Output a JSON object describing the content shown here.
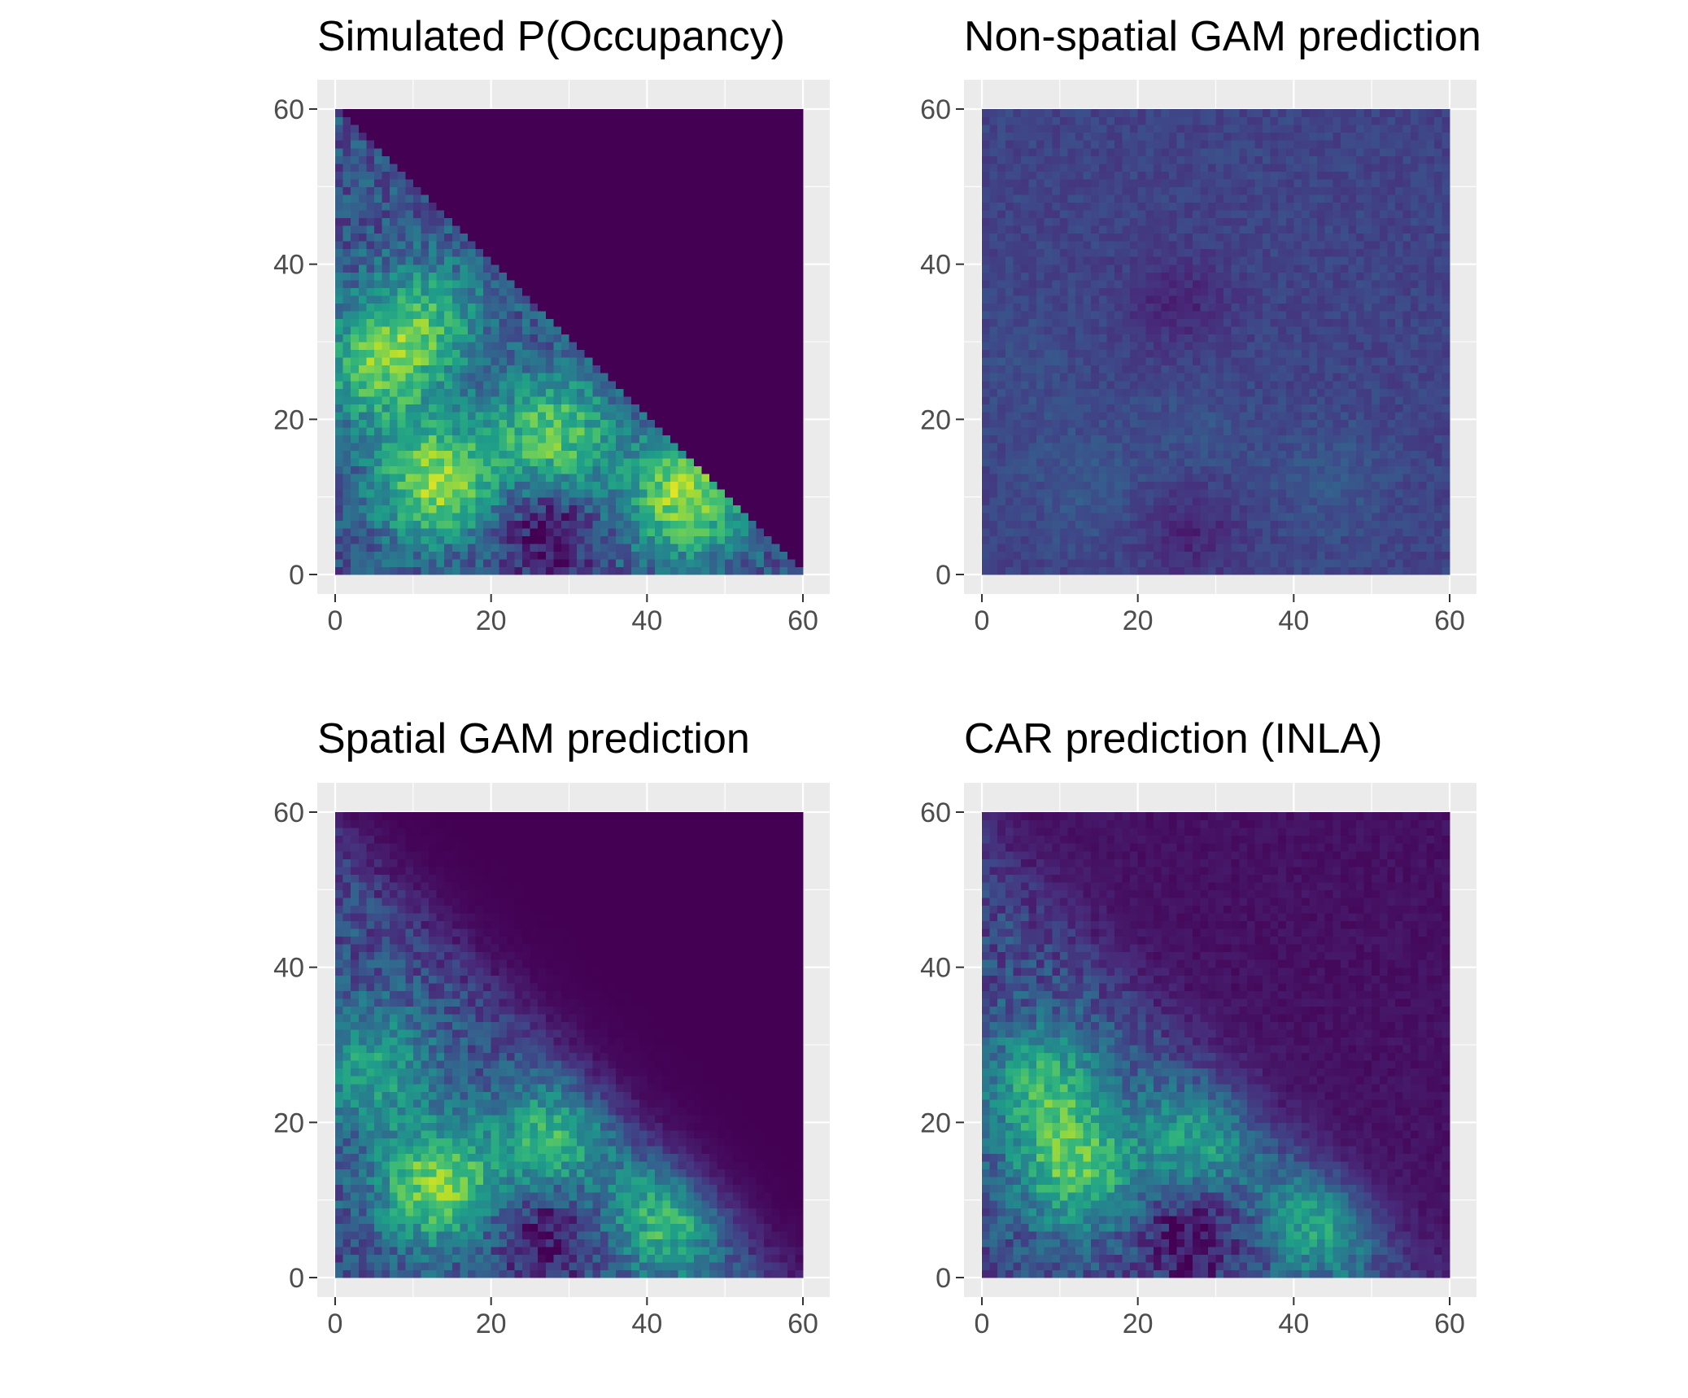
{
  "colors": {
    "panel_background": "#ebebeb",
    "gridline": "#ffffff",
    "tick": "#333333",
    "tick_label": "#4d4d4d",
    "title": "#000000",
    "colormap": "viridis",
    "viridis_stops": [
      "#440154",
      "#482878",
      "#3e4989",
      "#31688e",
      "#26828e",
      "#1f9e89",
      "#35b779",
      "#6ece58",
      "#b5de2b",
      "#fde725"
    ]
  },
  "chart_data": [
    {
      "type": "heatmap",
      "title": "Simulated P(Occupancy)",
      "xlabel": "",
      "ylabel": "",
      "xlim": [
        0,
        60
      ],
      "ylim": [
        0,
        60
      ],
      "x_ticks": [
        0,
        20,
        40,
        60
      ],
      "y_ticks": [
        0,
        20,
        40,
        60
      ],
      "grid": "on",
      "legend": "none",
      "grid_cells": 60,
      "surface": "triangle-hard",
      "scale": 1.0,
      "hotspots": [
        {
          "x": 13,
          "y": 12,
          "value": 0.85
        },
        {
          "x": 45,
          "y": 10,
          "value": 0.85
        },
        {
          "x": 28,
          "y": 18,
          "value": 0.75
        },
        {
          "x": 5,
          "y": 27,
          "value": 0.7
        },
        {
          "x": 12,
          "y": 33,
          "value": 0.6
        }
      ],
      "coldspots": [
        {
          "x": 27,
          "y": 6,
          "value": 0.15
        }
      ]
    },
    {
      "type": "heatmap",
      "title": "Non-spatial GAM prediction",
      "xlabel": "",
      "ylabel": "",
      "xlim": [
        0,
        60
      ],
      "ylim": [
        0,
        60
      ],
      "x_ticks": [
        0,
        20,
        40,
        60
      ],
      "y_ticks": [
        0,
        20,
        40,
        60
      ],
      "grid": "on",
      "legend": "none",
      "grid_cells": 60,
      "surface": "uniform",
      "scale": 0.45,
      "hotspots": [
        {
          "x": 13,
          "y": 12,
          "value": 0.45
        },
        {
          "x": 45,
          "y": 12,
          "value": 0.45
        },
        {
          "x": 28,
          "y": 18,
          "value": 0.4
        },
        {
          "x": 5,
          "y": 27,
          "value": 0.35
        }
      ],
      "coldspots": [
        {
          "x": 27,
          "y": 6,
          "value": 0.1
        },
        {
          "x": 25,
          "y": 35,
          "value": 0.1
        }
      ]
    },
    {
      "type": "heatmap",
      "title": "Spatial GAM prediction",
      "xlabel": "",
      "ylabel": "",
      "xlim": [
        0,
        60
      ],
      "ylim": [
        0,
        60
      ],
      "x_ticks": [
        0,
        20,
        40,
        60
      ],
      "y_ticks": [
        0,
        20,
        40,
        60
      ],
      "grid": "on",
      "legend": "none",
      "grid_cells": 60,
      "surface": "triangle-smooth",
      "scale": 0.95,
      "hotspots": [
        {
          "x": 13,
          "y": 12,
          "value": 0.85
        },
        {
          "x": 43,
          "y": 8,
          "value": 0.75
        },
        {
          "x": 28,
          "y": 18,
          "value": 0.7
        },
        {
          "x": 5,
          "y": 27,
          "value": 0.6
        }
      ],
      "coldspots": [
        {
          "x": 27,
          "y": 6,
          "value": 0.15
        }
      ]
    },
    {
      "type": "heatmap",
      "title": "CAR prediction (INLA)",
      "xlabel": "",
      "ylabel": "",
      "xlim": [
        0,
        60
      ],
      "ylim": [
        0,
        60
      ],
      "x_ticks": [
        0,
        20,
        40,
        60
      ],
      "y_ticks": [
        0,
        20,
        40,
        60
      ],
      "grid": "on",
      "legend": "none",
      "grid_cells": 60,
      "surface": "triangle-soft",
      "scale": 0.9,
      "hotspots": [
        {
          "x": 12,
          "y": 14,
          "value": 0.8
        },
        {
          "x": 44,
          "y": 8,
          "value": 0.75
        },
        {
          "x": 8,
          "y": 25,
          "value": 0.7
        },
        {
          "x": 28,
          "y": 18,
          "value": 0.65
        }
      ],
      "coldspots": [
        {
          "x": 27,
          "y": 6,
          "value": 0.15
        }
      ]
    }
  ]
}
